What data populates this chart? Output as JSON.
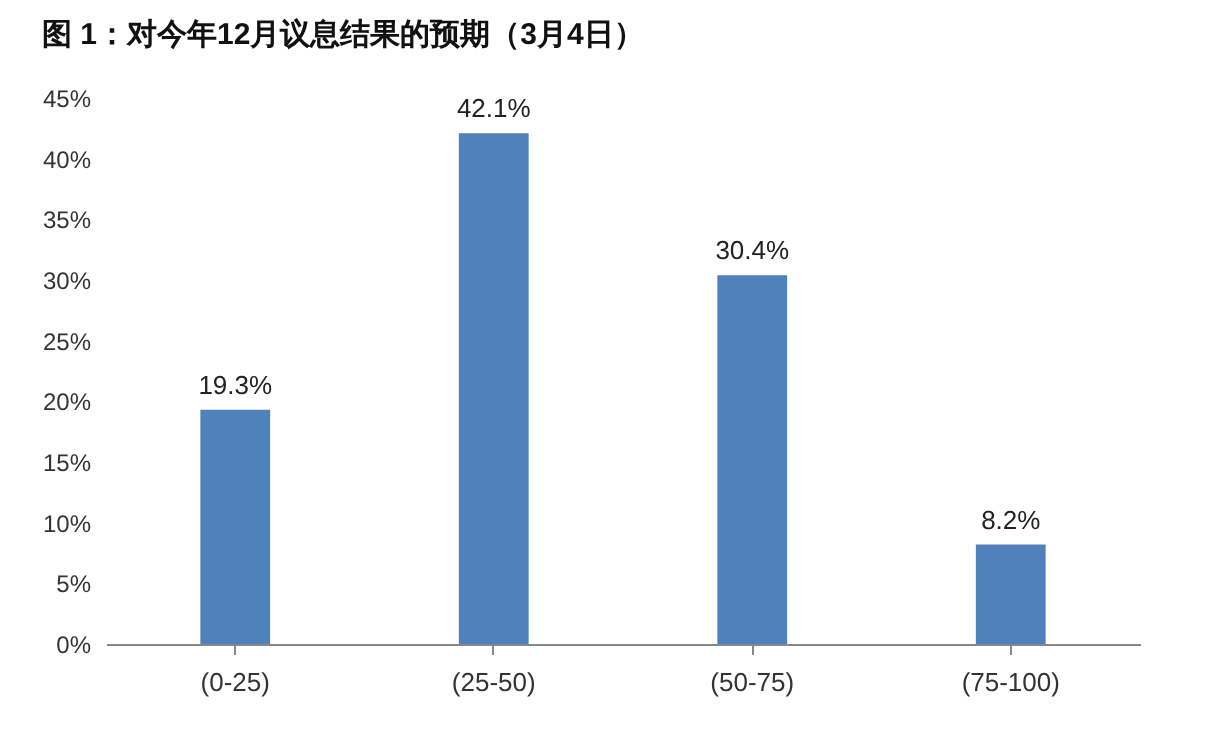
{
  "chart_data": {
    "type": "bar",
    "title": "图 1：对今年12月议息结果的预期（3月4日）",
    "categories": [
      "(0-25)",
      "(25-50)",
      "(50-75)",
      "(75-100)"
    ],
    "values": [
      19.3,
      42.1,
      30.4,
      8.2
    ],
    "value_labels": [
      "19.3%",
      "42.1%",
      "30.4%",
      "8.2%"
    ],
    "color": "#4f81bd",
    "ylim": [
      0,
      45
    ],
    "yticks": [
      {
        "value": 0,
        "label": "0%"
      },
      {
        "value": 5,
        "label": "5%"
      },
      {
        "value": 10,
        "label": "10%"
      },
      {
        "value": 15,
        "label": "15%"
      },
      {
        "value": 20,
        "label": "20%"
      },
      {
        "value": 25,
        "label": "25%"
      },
      {
        "value": 30,
        "label": "30%"
      },
      {
        "value": 35,
        "label": "35%"
      },
      {
        "value": 40,
        "label": "40%"
      },
      {
        "value": 45,
        "label": "45%"
      }
    ],
    "grid": false
  }
}
